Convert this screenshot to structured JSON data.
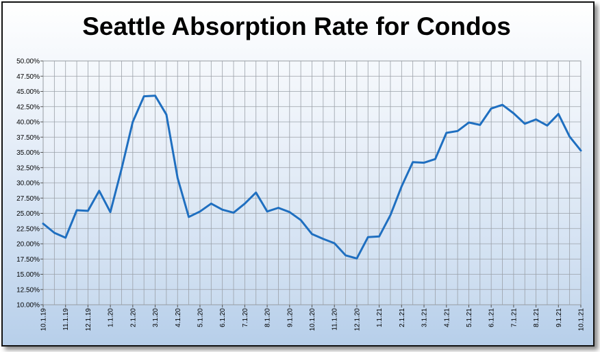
{
  "chart_data": {
    "type": "line",
    "title": "Seattle Absorption Rate for Condos",
    "xlabel": "",
    "ylabel": "",
    "ylim": [
      10,
      50
    ],
    "yticks": [
      "10.00%",
      "12.50%",
      "15.00%",
      "17.50%",
      "20.00%",
      "22.50%",
      "25.00%",
      "27.50%",
      "30.00%",
      "32.50%",
      "35.00%",
      "37.50%",
      "40.00%",
      "42.50%",
      "45.00%",
      "47.50%",
      "50.00%"
    ],
    "x_tick_labels": [
      "10.1.19",
      "11.1.19",
      "12.1.19",
      "1.1.20",
      "2.1.20",
      "3.1.20",
      "4.1.20",
      "5.1.20",
      "6.1.20",
      "7.1.20",
      "8.1.20",
      "9.1.20",
      "10.1.20",
      "11.1.20",
      "12.1.20",
      "1.1.21",
      "2.1.21",
      "3.1.21",
      "4.1.21",
      "5.1.21",
      "6.1.21",
      "7.1.21",
      "8.1.21",
      "9.1.21",
      "10.1.21"
    ],
    "grid": true,
    "line_color": "#1f6fc0",
    "series": [
      {
        "values": [
          23.3,
          21.8,
          21.0,
          25.5,
          25.4,
          28.7,
          25.2,
          32.3,
          40.0,
          44.2,
          44.3,
          41.2,
          30.8,
          24.4,
          25.3,
          26.6,
          25.6,
          25.1,
          26.6,
          28.4,
          25.3,
          25.9,
          25.2,
          23.9,
          21.6,
          20.8,
          20.1,
          18.1,
          17.6,
          21.1,
          21.2,
          24.7,
          29.4,
          33.4,
          33.3,
          33.9,
          38.2,
          38.5,
          39.9,
          39.5,
          42.2,
          42.8,
          41.4,
          39.7,
          40.4,
          39.4,
          41.3,
          37.6,
          35.3
        ]
      }
    ]
  }
}
